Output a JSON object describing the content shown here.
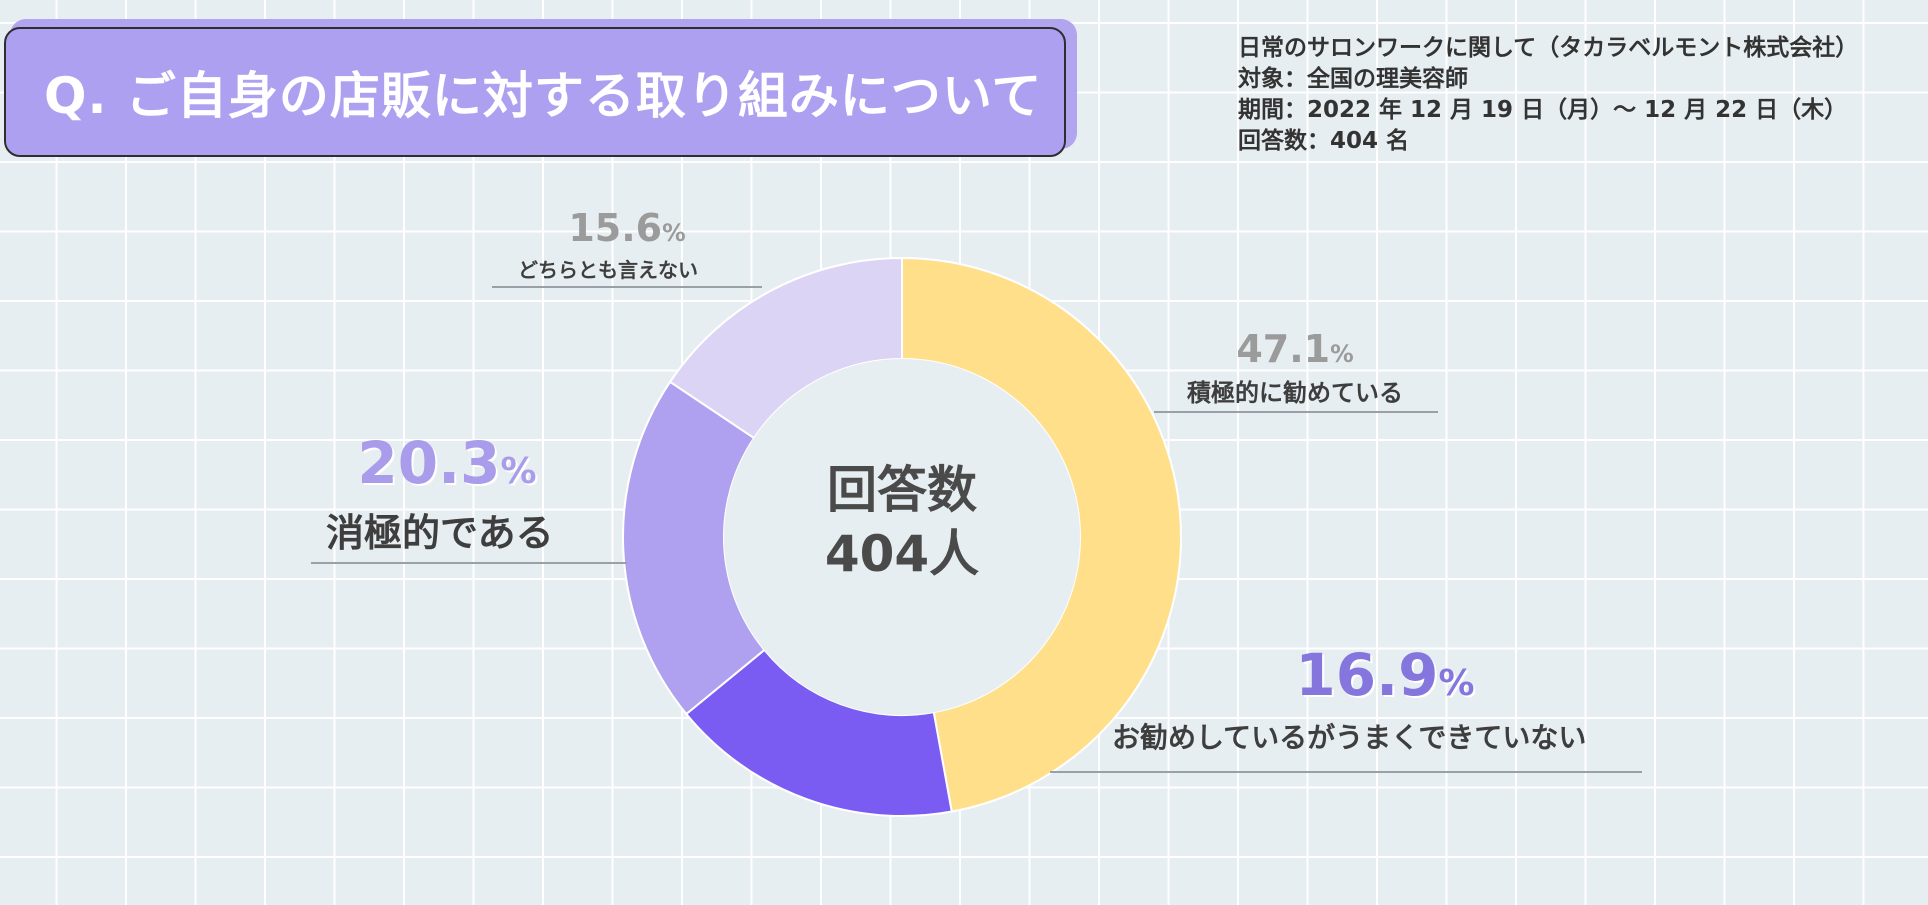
{
  "title": "Q.  ご自身の店販に対する取り組みについて",
  "survey_info": [
    "日常のサロンワークに関して（タカラベルモント株式会社）",
    "対象：全国の理美容師",
    "期間：2022 年 12 月 19 日（月）～ 12 月 22 日（木）",
    "回答数：404 名"
  ],
  "center": {
    "line1": "回答数",
    "line2": "404人"
  },
  "chart_data": {
    "type": "pie",
    "donut": true,
    "slices": [
      {
        "label": "積極的に勧めている",
        "value": 47.1,
        "value_text": "47.1",
        "unit": "%",
        "color": "#ffdf8a",
        "pct_color": "#9b9b9b"
      },
      {
        "label": "お勧めしているがうまくできていない",
        "value": 16.9,
        "value_text": "16.9",
        "unit": "%",
        "color": "#7a5cf2",
        "pct_color": "#8576de"
      },
      {
        "label": "消極的である",
        "value": 20.3,
        "value_text": "20.3",
        "unit": "%",
        "color": "#afa1f0",
        "pct_color": "#a99ceb"
      },
      {
        "label": "どちらとも言えない",
        "value": 15.6,
        "value_text": "15.6",
        "unit": "%",
        "color": "#dcd4f5",
        "pct_color": "#9b9b9b"
      }
    ],
    "start_angle_deg": 0,
    "direction": "clockwise"
  }
}
